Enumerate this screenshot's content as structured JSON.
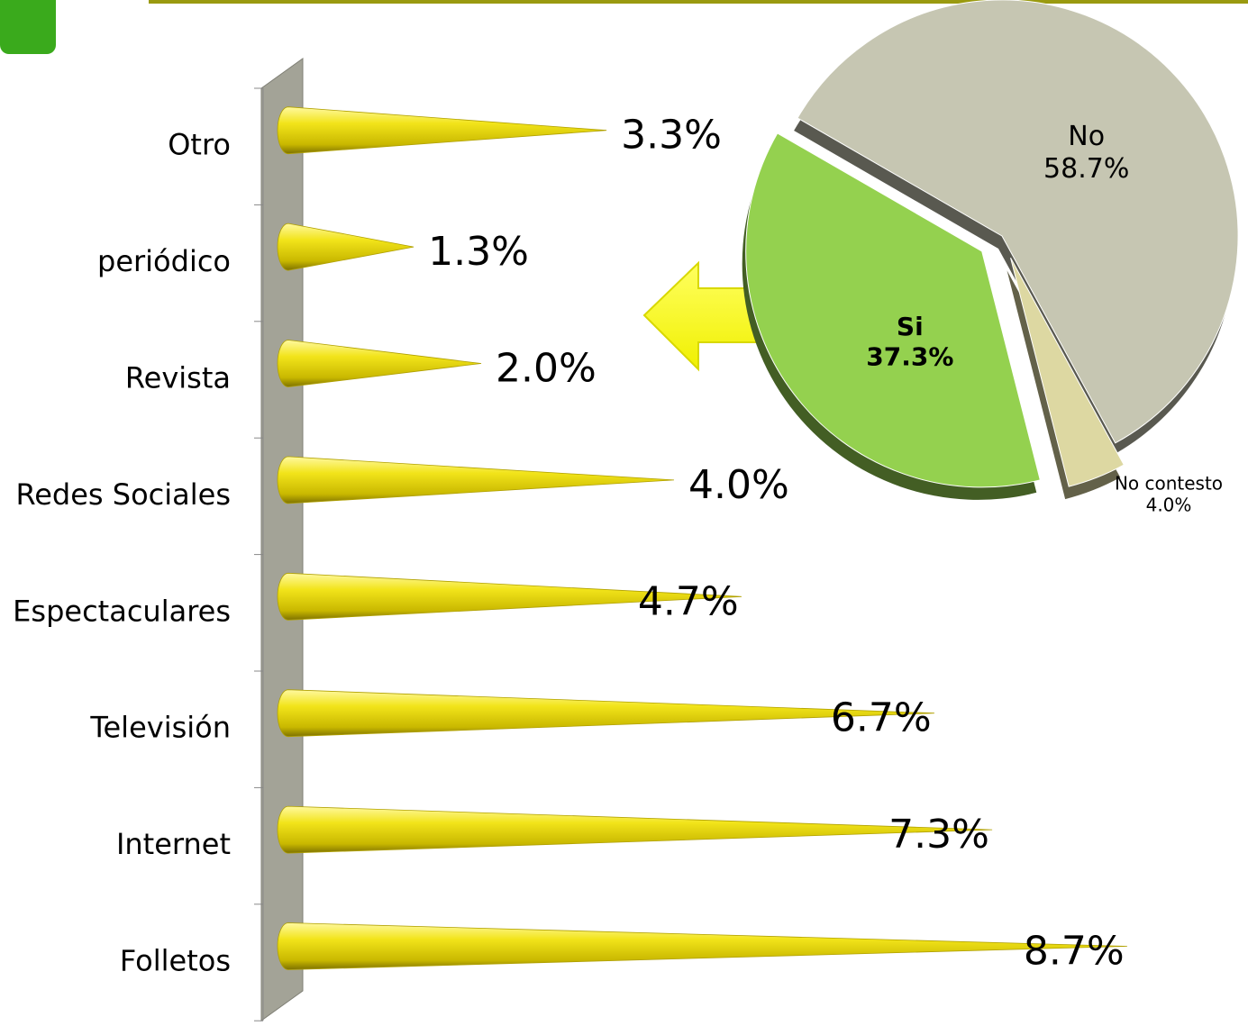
{
  "chart_data": [
    {
      "type": "bar",
      "categories": [
        "Otro",
        "periódico",
        "Revista",
        "Redes Sociales",
        "Espectaculares",
        "Televisión",
        "Internet",
        "Folletos"
      ],
      "values": [
        3.3,
        1.3,
        2.0,
        4.0,
        4.7,
        6.7,
        7.3,
        8.7
      ],
      "value_labels": [
        "3.3%",
        "1.3%",
        "2.0%",
        "4.0%",
        "4.7%",
        "6.7%",
        "7.3%",
        "8.7%"
      ],
      "color": "#e8dc10"
    },
    {
      "type": "pie",
      "categories": [
        "No",
        "No contesto",
        "Si"
      ],
      "values": [
        58.7,
        4.0,
        37.3
      ],
      "value_labels": [
        "58.7%",
        "4.0%",
        "37.3%"
      ],
      "colors": [
        "#c6c6b2",
        "#ddd8a2",
        "#94d14f"
      ]
    }
  ]
}
